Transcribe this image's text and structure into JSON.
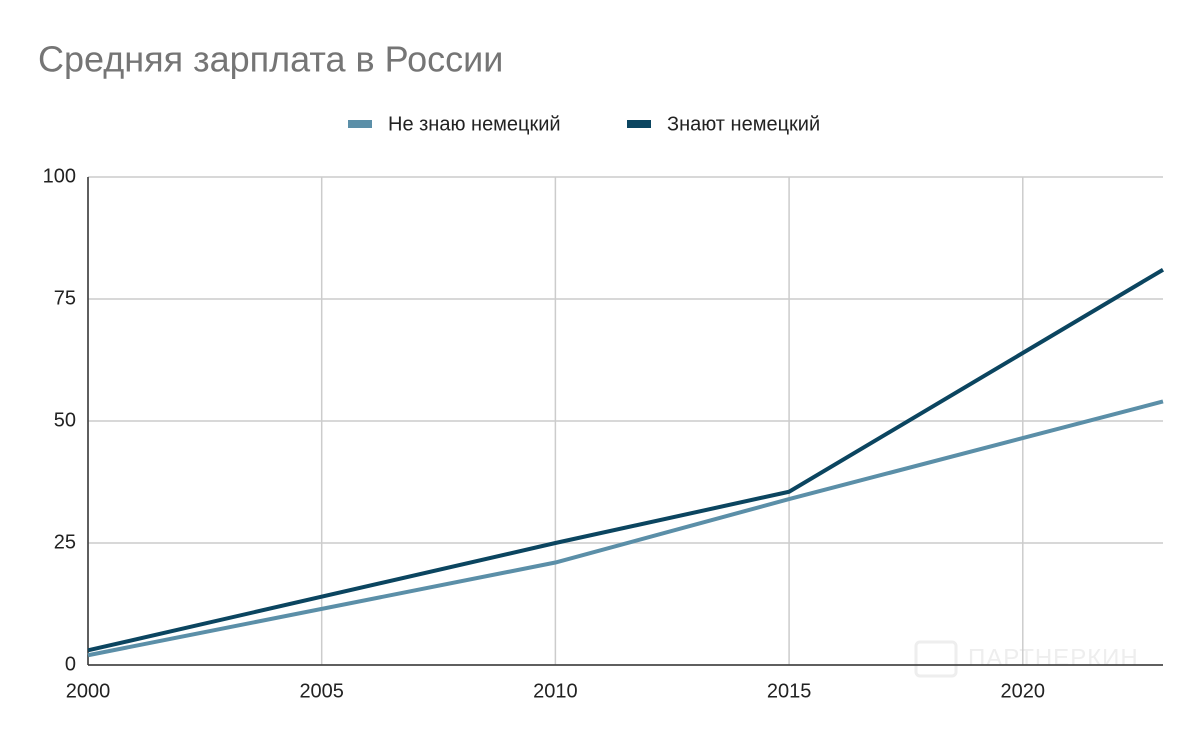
{
  "chart_data": {
    "type": "line",
    "title": "Средняя зарплата в России",
    "x": [
      2000,
      2010,
      2015,
      2023
    ],
    "series": [
      {
        "name": "Не знаю немецкий",
        "color": "#5b8fa8",
        "values": [
          2,
          21,
          34,
          54
        ]
      },
      {
        "name": "Знают немецкий",
        "color": "#0b4560",
        "values": [
          3,
          25,
          35.5,
          81
        ]
      }
    ],
    "xlim": [
      2000,
      2023
    ],
    "xticks": [
      2000,
      2005,
      2010,
      2015,
      2020
    ],
    "ylim": [
      0,
      100
    ],
    "yticks": [
      0,
      25,
      50,
      75,
      100
    ],
    "grid": true,
    "legend": "top",
    "watermark": "ПАРТНЕРКИН"
  }
}
